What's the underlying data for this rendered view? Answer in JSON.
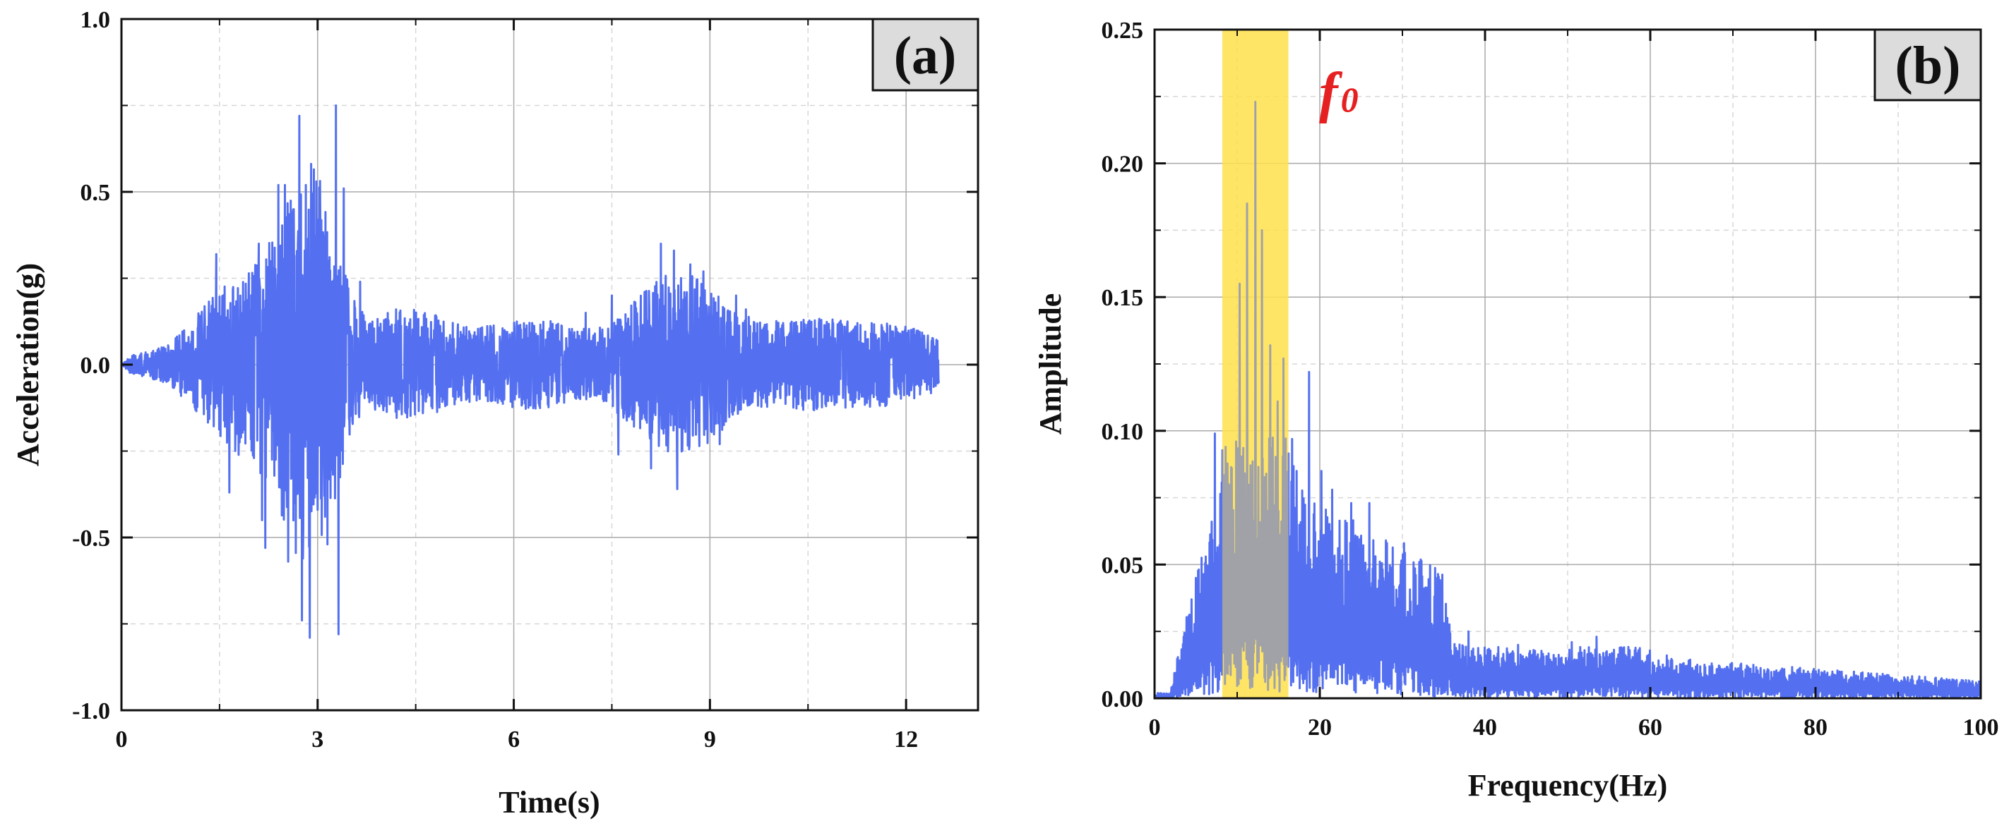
{
  "chart_data": [
    {
      "panel": "(a)",
      "type": "line",
      "xlabel": "Time(s)",
      "ylabel": "Acceleration(g)",
      "xlim": [
        0,
        13.1
      ],
      "ylim": [
        -1.0,
        1.0
      ],
      "x_ticks": [
        0,
        3,
        6,
        9,
        12
      ],
      "x_tick_labels": [
        "0",
        "3",
        "6",
        "9",
        "12"
      ],
      "y_ticks": [
        -1.0,
        -0.5,
        0.0,
        0.5,
        1.0
      ],
      "y_tick_labels": [
        "-1.0",
        "-0.5",
        "0.0",
        "0.5",
        "1.0"
      ],
      "grid": "major solid, minor dashed",
      "line_color": "#5470f0",
      "duration": 12.5,
      "peaks": [
        {
          "t": 1.45,
          "v": 0.32
        },
        {
          "t": 1.65,
          "v": -0.37
        },
        {
          "t": 2.1,
          "v": 0.35
        },
        {
          "t": 2.15,
          "v": -0.45
        },
        {
          "t": 2.2,
          "v": -0.53
        },
        {
          "t": 2.4,
          "v": 0.52
        },
        {
          "t": 2.5,
          "v": 0.52
        },
        {
          "t": 2.55,
          "v": -0.57
        },
        {
          "t": 2.72,
          "v": 0.72
        },
        {
          "t": 2.76,
          "v": -0.74
        },
        {
          "t": 2.82,
          "v": 0.52
        },
        {
          "t": 2.88,
          "v": -0.79
        },
        {
          "t": 2.98,
          "v": 0.53
        },
        {
          "t": 3.0,
          "v": -0.42
        },
        {
          "t": 3.15,
          "v": -0.52
        },
        {
          "t": 3.28,
          "v": 0.75
        },
        {
          "t": 3.32,
          "v": -0.78
        },
        {
          "t": 3.4,
          "v": 0.51
        },
        {
          "t": 3.65,
          "v": 0.24
        },
        {
          "t": 4.2,
          "v": 0.16
        },
        {
          "t": 4.35,
          "v": -0.14
        },
        {
          "t": 7.1,
          "v": 0.15
        },
        {
          "t": 7.5,
          "v": 0.2
        },
        {
          "t": 7.6,
          "v": -0.26
        },
        {
          "t": 8.1,
          "v": -0.3
        },
        {
          "t": 8.25,
          "v": 0.35
        },
        {
          "t": 8.45,
          "v": 0.33
        },
        {
          "t": 8.5,
          "v": -0.36
        },
        {
          "t": 8.7,
          "v": 0.29
        },
        {
          "t": 8.9,
          "v": 0.27
        },
        {
          "t": 9.15,
          "v": -0.23
        },
        {
          "t": 9.4,
          "v": 0.2
        },
        {
          "t": 9.55,
          "v": 0.16
        }
      ]
    },
    {
      "panel": "(b)",
      "type": "line",
      "xlabel": "Frequency(Hz)",
      "ylabel": "Amplitude",
      "xlim": [
        0,
        100
      ],
      "ylim": [
        0.0,
        0.25
      ],
      "x_ticks": [
        0,
        20,
        40,
        60,
        80,
        100
      ],
      "x_tick_labels": [
        "0",
        "20",
        "40",
        "60",
        "80",
        "100"
      ],
      "y_ticks": [
        0.0,
        0.05,
        0.1,
        0.15,
        0.2,
        0.25
      ],
      "y_tick_labels": [
        "0.00",
        "0.05",
        "0.10",
        "0.15",
        "0.20",
        "0.25"
      ],
      "grid": "major solid, minor dashed",
      "line_color": "#5470f0",
      "highlight_band": {
        "from": 8.2,
        "to": 16.2,
        "label": "f",
        "label_sub": "0",
        "color": "#ffe14d"
      },
      "peaks": [
        {
          "f": 5.0,
          "a": 0.045
        },
        {
          "f": 6.2,
          "a": 0.053
        },
        {
          "f": 7.3,
          "a": 0.099
        },
        {
          "f": 8.6,
          "a": 0.094
        },
        {
          "f": 10.3,
          "a": 0.155
        },
        {
          "f": 11.2,
          "a": 0.185
        },
        {
          "f": 12.2,
          "a": 0.223
        },
        {
          "f": 13.0,
          "a": 0.175
        },
        {
          "f": 14.0,
          "a": 0.132
        },
        {
          "f": 14.9,
          "a": 0.111
        },
        {
          "f": 15.6,
          "a": 0.127
        },
        {
          "f": 17.2,
          "a": 0.085
        },
        {
          "f": 18.7,
          "a": 0.122
        },
        {
          "f": 20.2,
          "a": 0.085
        },
        {
          "f": 21.5,
          "a": 0.078
        },
        {
          "f": 23.8,
          "a": 0.073
        },
        {
          "f": 26.0,
          "a": 0.073
        },
        {
          "f": 28.0,
          "a": 0.059
        },
        {
          "f": 30.2,
          "a": 0.058
        },
        {
          "f": 34.5,
          "a": 0.044
        },
        {
          "f": 38.0,
          "a": 0.025
        },
        {
          "f": 44.0,
          "a": 0.02
        },
        {
          "f": 50.5,
          "a": 0.021
        },
        {
          "f": 53.5,
          "a": 0.023
        },
        {
          "f": 57.5,
          "a": 0.018
        },
        {
          "f": 62.0,
          "a": 0.016
        },
        {
          "f": 67.5,
          "a": 0.012
        },
        {
          "f": 75.0,
          "a": 0.01
        },
        {
          "f": 88.0,
          "a": 0.008
        },
        {
          "f": 97.0,
          "a": 0.006
        }
      ]
    }
  ]
}
